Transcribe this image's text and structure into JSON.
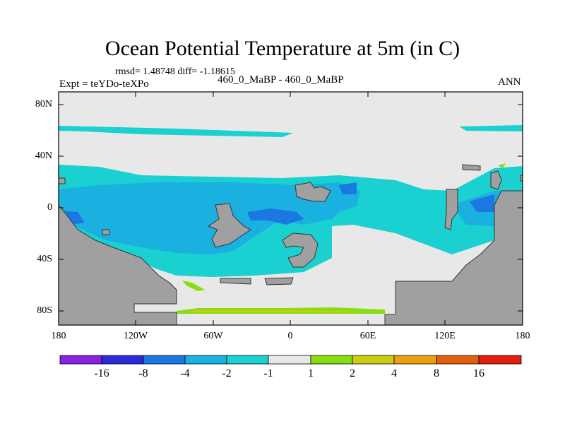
{
  "title": "Ocean Potential Temperature at 5m (in C)",
  "stats_line": "rmsd= 1.48748 diff= -1.18615",
  "expt_label": "Expt = teYDo-teXPo",
  "case_label": "460_0_MaBP - 460_0_MaBP",
  "season_label": "ANN",
  "y_ticks": [
    "80N",
    "40N",
    "0",
    "40S",
    "80S"
  ],
  "x_ticks": [
    "180",
    "120W",
    "60W",
    "0",
    "60E",
    "120E",
    "180"
  ],
  "colorbar": {
    "colors": [
      "#8a20e0",
      "#2a2ad8",
      "#1a78e0",
      "#1ab0e0",
      "#1ad0d0",
      "#e8e8e8",
      "#88dd10",
      "#cccc10",
      "#e8a010",
      "#e06010",
      "#e02010"
    ],
    "labels": [
      "-16",
      "-8",
      "-4",
      "-2",
      "-1",
      "1",
      "2",
      "4",
      "8",
      "16"
    ]
  },
  "colors": {
    "land": "#a0a0a0",
    "neutral": "#e8e8e8",
    "cyan": "#1ad0d0",
    "light_blue": "#1ab0e0",
    "blue": "#1a78e0",
    "green": "#88dd10",
    "yellow": "#cccc10"
  }
}
